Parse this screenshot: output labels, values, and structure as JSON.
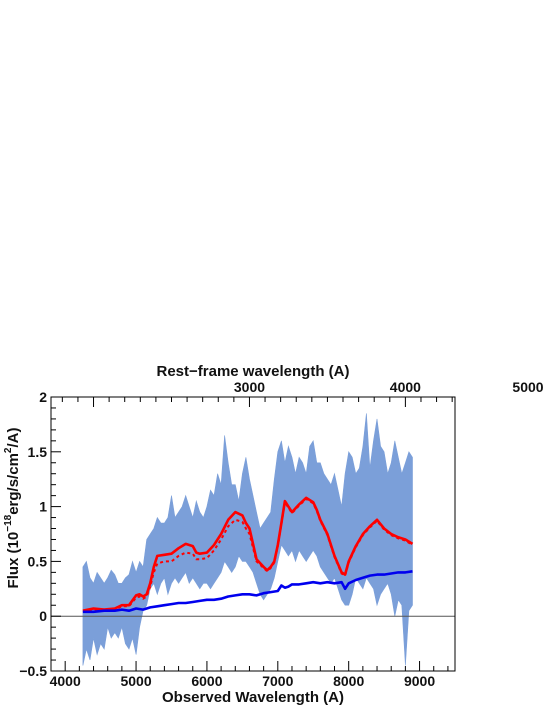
{
  "chart_data": {
    "type": "line",
    "top_axis_label": "Rest−frame wavelength (A)",
    "top_axis_ticks": [
      3000,
      4000,
      5000
    ],
    "top_axis_ticks_text": [
      "3000",
      "4000",
      "5000"
    ],
    "xlabel": "Observed Wavelength (A)",
    "ylabel": "Flux (10",
    "ylabel_exp": "−18",
    "ylabel_units": "erg/s/cm",
    "ylabel_exp2": "2",
    "ylabel_tail": "/A)",
    "xlim": [
      3800,
      9500
    ],
    "ylim": [
      -0.5,
      2
    ],
    "x_ticks": [
      4000,
      5000,
      6000,
      7000,
      8000,
      9000
    ],
    "x_ticks_text": [
      "4000",
      "5000",
      "6000",
      "7000",
      "8000",
      "9000"
    ],
    "y_ticks": [
      -0.5,
      0,
      0.5,
      1,
      1.5,
      2
    ],
    "y_ticks_text": [
      "−0.5",
      "0",
      "0.5",
      "1",
      "1.5",
      "2"
    ],
    "zero_line": 0,
    "colors": {
      "spectrum_band": "#7b9fd9",
      "model": "#ff0000",
      "error": "#0000ee",
      "axes": "#000000"
    },
    "series": [
      {
        "style": "band",
        "x": [
          4250,
          4300,
          4350,
          4400,
          4450,
          4500,
          4550,
          4600,
          4650,
          4700,
          4750,
          4800,
          4850,
          4900,
          4950,
          5000,
          5050,
          5100,
          5150,
          5200,
          5250,
          5300,
          5350,
          5400,
          5450,
          5500,
          5550,
          5600,
          5650,
          5700,
          5750,
          5800,
          5850,
          5900,
          5950,
          6000,
          6050,
          6100,
          6150,
          6200,
          6250,
          6300,
          6350,
          6400,
          6450,
          6500,
          6550,
          6600,
          6650,
          6700,
          6750,
          6800,
          6850,
          6900,
          6950,
          7000,
          7050,
          7100,
          7150,
          7200,
          7250,
          7300,
          7350,
          7400,
          7450,
          7500,
          7550,
          7600,
          7650,
          7700,
          7750,
          7800,
          7850,
          7900,
          7950,
          8000,
          8050,
          8100,
          8150,
          8200,
          8250,
          8300,
          8350,
          8400,
          8450,
          8500,
          8550,
          8600,
          8650,
          8700,
          8750,
          8800,
          8850,
          8900
        ],
        "upper": [
          0.45,
          0.5,
          0.35,
          0.3,
          0.4,
          0.35,
          0.3,
          0.35,
          0.42,
          0.38,
          0.3,
          0.3,
          0.35,
          0.38,
          0.5,
          0.4,
          0.5,
          0.45,
          0.7,
          0.75,
          0.8,
          0.9,
          0.85,
          0.85,
          0.9,
          1.1,
          0.9,
          0.95,
          1.0,
          1.1,
          1.0,
          0.9,
          1.05,
          0.95,
          0.9,
          1.0,
          1.15,
          1.1,
          1.3,
          1.2,
          1.65,
          1.4,
          1.2,
          1.2,
          1.05,
          1.3,
          1.45,
          1.25,
          1.1,
          0.95,
          0.8,
          0.85,
          0.9,
          0.95,
          1.25,
          1.5,
          1.6,
          1.4,
          1.55,
          1.45,
          1.3,
          1.45,
          1.4,
          1.3,
          1.55,
          1.6,
          1.4,
          1.4,
          1.3,
          1.25,
          1.2,
          1.3,
          1.15,
          1.0,
          1.3,
          1.5,
          1.45,
          1.3,
          1.35,
          1.55,
          1.85,
          1.35,
          1.6,
          1.8,
          1.55,
          1.5,
          1.3,
          1.4,
          1.6,
          1.45,
          1.3,
          1.4,
          1.5,
          1.45
        ],
        "lower": [
          -0.45,
          -0.3,
          -0.4,
          -0.2,
          -0.35,
          -0.25,
          -0.3,
          -0.1,
          -0.2,
          -0.15,
          -0.2,
          -0.1,
          -0.25,
          -0.3,
          -0.2,
          -0.35,
          -0.1,
          0.05,
          0.1,
          0.25,
          0.3,
          0.2,
          0.3,
          0.35,
          0.2,
          0.3,
          0.35,
          0.3,
          0.35,
          0.4,
          0.3,
          0.35,
          0.3,
          0.25,
          0.3,
          0.3,
          0.25,
          0.3,
          0.35,
          0.4,
          0.5,
          0.45,
          0.4,
          0.45,
          0.55,
          0.5,
          0.5,
          0.45,
          0.4,
          0.3,
          0.2,
          0.15,
          0.2,
          0.25,
          0.35,
          0.5,
          0.65,
          0.6,
          0.55,
          0.6,
          0.5,
          0.6,
          0.55,
          0.5,
          0.55,
          0.6,
          0.55,
          0.45,
          0.4,
          0.35,
          0.3,
          0.35,
          0.25,
          0.15,
          0.1,
          0.1,
          0.2,
          0.35,
          0.3,
          0.25,
          0.35,
          0.3,
          0.25,
          0.1,
          0.2,
          0.25,
          0.3,
          0.2,
          0.0,
          0.15,
          0.1,
          -0.45,
          0.05,
          0.1
        ]
      },
      {
        "style": "solid",
        "color": "#ff0000",
        "x": [
          4250,
          4400,
          4550,
          4700,
          4800,
          4900,
          5000,
          5050,
          5100,
          5150,
          5200,
          5250,
          5300,
          5400,
          5500,
          5600,
          5700,
          5800,
          5850,
          5900,
          6000,
          6100,
          6200,
          6300,
          6400,
          6500,
          6550,
          6600,
          6700,
          6800,
          6850,
          6900,
          6950,
          7000,
          7050,
          7100,
          7150,
          7200,
          7300,
          7400,
          7500,
          7550,
          7600,
          7700,
          7800,
          7900,
          7950,
          8000,
          8100,
          8200,
          8300,
          8400,
          8500,
          8600,
          8700,
          8800,
          8900
        ],
        "y": [
          0.05,
          0.07,
          0.06,
          0.07,
          0.1,
          0.1,
          0.19,
          0.2,
          0.18,
          0.2,
          0.3,
          0.45,
          0.55,
          0.56,
          0.57,
          0.62,
          0.66,
          0.64,
          0.58,
          0.57,
          0.58,
          0.65,
          0.75,
          0.88,
          0.95,
          0.92,
          0.85,
          0.8,
          0.52,
          0.45,
          0.42,
          0.45,
          0.5,
          0.65,
          0.85,
          1.05,
          1.0,
          0.95,
          1.02,
          1.08,
          1.04,
          0.97,
          0.88,
          0.75,
          0.55,
          0.4,
          0.38,
          0.5,
          0.64,
          0.75,
          0.82,
          0.88,
          0.8,
          0.75,
          0.72,
          0.7,
          0.66
        ]
      },
      {
        "style": "dotted",
        "color": "#ff0000",
        "x": [
          4250,
          4400,
          4550,
          4700,
          4800,
          4900,
          5000,
          5050,
          5100,
          5150,
          5200,
          5250,
          5300,
          5400,
          5500,
          5600,
          5700,
          5800,
          5850,
          5900,
          6000,
          6100,
          6200,
          6300,
          6400,
          6500,
          6550,
          6600,
          6700,
          6800,
          6850,
          6900,
          6950,
          7000,
          7050,
          7100,
          7150,
          7200,
          7300,
          7400,
          7500,
          7550,
          7600,
          7700,
          7800,
          7900,
          7950,
          8000,
          8100,
          8200,
          8300,
          8400,
          8500,
          8600,
          8700,
          8800,
          8900
        ],
        "y": [
          0.04,
          0.06,
          0.05,
          0.06,
          0.09,
          0.09,
          0.17,
          0.18,
          0.16,
          0.18,
          0.27,
          0.4,
          0.48,
          0.5,
          0.5,
          0.55,
          0.58,
          0.57,
          0.52,
          0.52,
          0.53,
          0.6,
          0.7,
          0.82,
          0.88,
          0.86,
          0.8,
          0.75,
          0.5,
          0.44,
          0.41,
          0.44,
          0.49,
          0.64,
          0.84,
          1.04,
          0.99,
          0.94,
          1.01,
          1.07,
          1.03,
          0.96,
          0.87,
          0.74,
          0.54,
          0.39,
          0.37,
          0.49,
          0.63,
          0.74,
          0.81,
          0.87,
          0.79,
          0.74,
          0.71,
          0.69,
          0.65
        ]
      },
      {
        "style": "solid",
        "color": "#0000ee",
        "x": [
          4250,
          4400,
          4550,
          4700,
          4800,
          4900,
          5000,
          5100,
          5200,
          5300,
          5400,
          5500,
          5600,
          5700,
          5800,
          5900,
          6000,
          6100,
          6200,
          6300,
          6400,
          6500,
          6600,
          6700,
          6800,
          6900,
          7000,
          7050,
          7100,
          7150,
          7200,
          7300,
          7400,
          7500,
          7600,
          7700,
          7800,
          7900,
          7950,
          8000,
          8100,
          8200,
          8300,
          8400,
          8500,
          8600,
          8700,
          8800,
          8900
        ],
        "y": [
          0.04,
          0.04,
          0.05,
          0.05,
          0.06,
          0.05,
          0.07,
          0.06,
          0.08,
          0.09,
          0.1,
          0.11,
          0.12,
          0.12,
          0.13,
          0.14,
          0.15,
          0.15,
          0.16,
          0.18,
          0.19,
          0.2,
          0.2,
          0.19,
          0.21,
          0.22,
          0.23,
          0.28,
          0.26,
          0.27,
          0.29,
          0.29,
          0.3,
          0.31,
          0.3,
          0.31,
          0.3,
          0.31,
          0.25,
          0.3,
          0.33,
          0.35,
          0.37,
          0.38,
          0.38,
          0.39,
          0.4,
          0.4,
          0.41
        ]
      }
    ]
  }
}
